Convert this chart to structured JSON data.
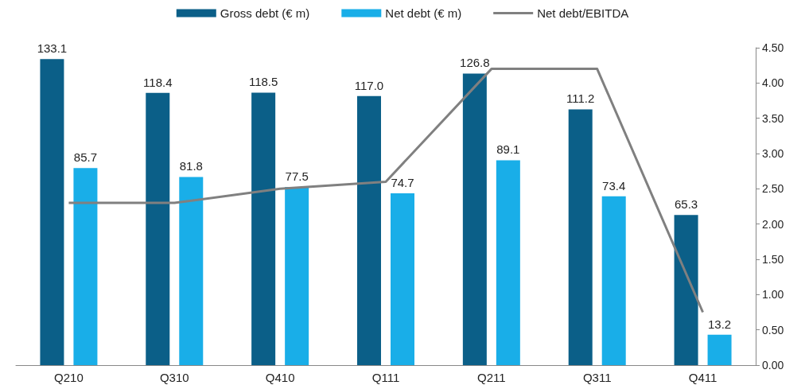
{
  "chart_data": {
    "type": "bar",
    "categories": [
      "Q210",
      "Q310",
      "Q410",
      "Q111",
      "Q211",
      "Q311",
      "Q411"
    ],
    "series": [
      {
        "name": "Gross debt (€ m)",
        "color": "#0b5f88",
        "values": [
          133.1,
          118.4,
          118.5,
          117.0,
          126.8,
          111.2,
          65.3
        ],
        "value_labels": [
          "133.1",
          "118.4",
          "118.5",
          "117.0",
          "126.8",
          "111.2",
          "65.3"
        ]
      },
      {
        "name": "Net debt (€ m)",
        "color": "#19aee8",
        "values": [
          85.7,
          81.8,
          77.5,
          74.7,
          89.1,
          73.4,
          13.2
        ],
        "value_labels": [
          "85.7",
          "81.8",
          "77.5",
          "74.7",
          "89.1",
          "73.4",
          "13.2"
        ]
      },
      {
        "name": "Net debt/EBITDA",
        "type": "line",
        "axis": "y2",
        "color": "#808080",
        "values": [
          2.3,
          2.3,
          2.5,
          2.6,
          4.2,
          4.2,
          0.75
        ]
      }
    ],
    "ylim": [
      0,
      138
    ],
    "y2lim": [
      0,
      4.5
    ],
    "y2ticks": [
      {
        "value": 0,
        "label": "0.00"
      },
      {
        "value": 0.5,
        "label": "0.50"
      },
      {
        "value": 1,
        "label": "1.00"
      },
      {
        "value": 1.5,
        "label": "1.50"
      },
      {
        "value": 2,
        "label": "2.00"
      },
      {
        "value": 2.5,
        "label": "2.50"
      },
      {
        "value": 3,
        "label": "3.00"
      },
      {
        "value": 3.5,
        "label": "3.50"
      },
      {
        "value": 4,
        "label": "4.00"
      },
      {
        "value": 4.5,
        "label": "4.50"
      }
    ],
    "legend": "top",
    "grid": false,
    "marker": "none"
  }
}
